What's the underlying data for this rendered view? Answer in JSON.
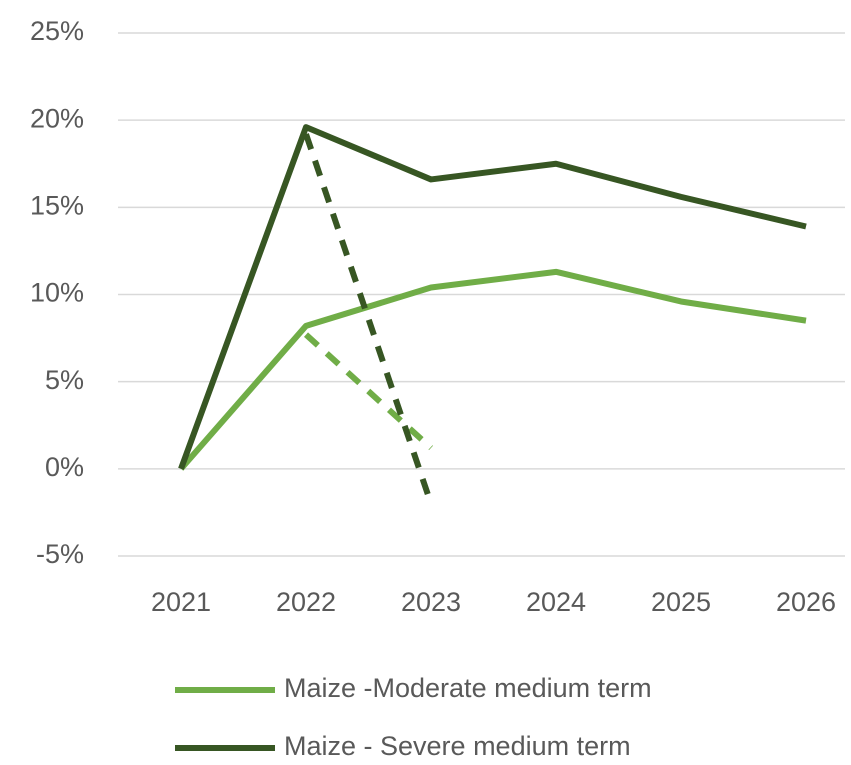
{
  "chart_data": {
    "type": "line",
    "categories": [
      "2021",
      "2022",
      "2023",
      "2024",
      "2025",
      "2026"
    ],
    "series": [
      {
        "name": "Maize -Moderate medium term",
        "color": "#70ad47",
        "values": [
          0,
          8.2,
          10.4,
          11.3,
          9.6,
          8.5
        ]
      },
      {
        "name": "Maize - Severe medium term",
        "color": "#375623",
        "values": [
          0,
          19.6,
          16.6,
          17.5,
          15.6,
          13.9
        ]
      },
      {
        "color": "#70ad47",
        "dashed": true,
        "values": [
          null,
          7.7,
          1.2,
          null,
          null,
          null
        ]
      },
      {
        "color": "#375623",
        "dashed": true,
        "values": [
          null,
          19.2,
          -2.0,
          null,
          null,
          null
        ]
      }
    ],
    "ylim": [
      -5,
      25
    ],
    "yticks": [
      {
        "value": -5,
        "label": "-5%"
      },
      {
        "value": 0,
        "label": "0%"
      },
      {
        "value": 5,
        "label": "5%"
      },
      {
        "value": 10,
        "label": "10%"
      },
      {
        "value": 15,
        "label": "15%"
      },
      {
        "value": 20,
        "label": "20%"
      },
      {
        "value": 25,
        "label": "25%"
      }
    ],
    "grid": true,
    "legend": "bottom"
  }
}
